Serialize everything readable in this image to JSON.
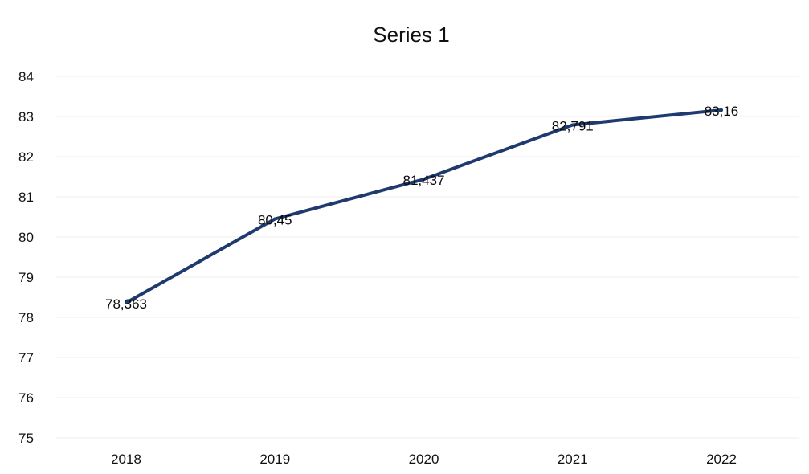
{
  "chart_data": {
    "type": "line",
    "title": "Series 1",
    "xlabel": "",
    "ylabel": "",
    "categories": [
      "2018",
      "2019",
      "2020",
      "2021",
      "2022"
    ],
    "series": [
      {
        "values": [
          78.363,
          80.45,
          81.437,
          82.791,
          83.16
        ],
        "data_labels": [
          "78,363",
          "80,45",
          "81,437",
          "82,791",
          "83,16"
        ],
        "color": "#1f3a6e"
      }
    ],
    "ylim": [
      75,
      84
    ],
    "yticks": [
      "75",
      "76",
      "77",
      "78",
      "79",
      "80",
      "81",
      "82",
      "83",
      "84"
    ],
    "grid": true,
    "legend": "none"
  }
}
